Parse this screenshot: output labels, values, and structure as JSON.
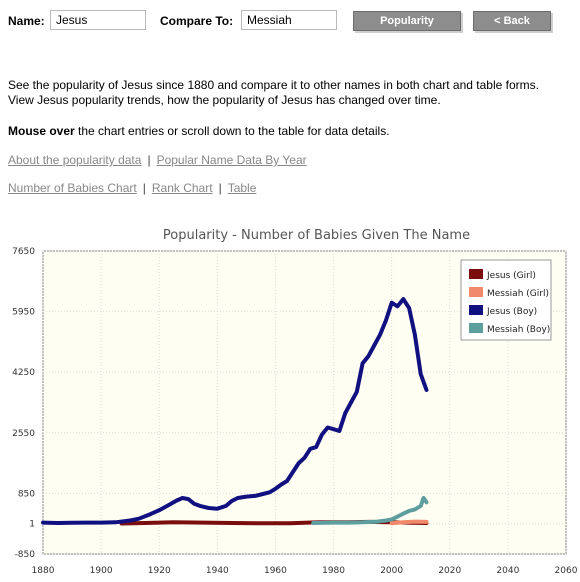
{
  "form": {
    "name_label": "Name:",
    "name_value": "Jesus",
    "compare_label": "Compare To:",
    "compare_value": "Messiah",
    "popularity_button": "Popularity",
    "back_button": "< Back"
  },
  "intro": {
    "line1": "See the popularity of Jesus since 1880 and compare it to other names in both chart and table forms.",
    "line2": "View Jesus popularity trends, how the popularity of Jesus has changed over time.",
    "mouse_bold": "Mouse over",
    "mouse_rest": " the chart entries or scroll down to the table for data details."
  },
  "links": {
    "about": "About the popularity data",
    "popular": "Popular Name Data By Year",
    "number_chart": "Number of Babies Chart",
    "rank_chart": "Rank Chart",
    "table": "Table",
    "separator": "|"
  },
  "colors": {
    "jesus_girl": "#7a0d0d",
    "messiah_girl": "#f08a6a",
    "jesus_boy": "#101080",
    "messiah_boy": "#5f9e9e",
    "plot_bg": "#fffef3"
  },
  "chart_data": {
    "type": "line",
    "title": "Popularity - Number of Babies Given The Name",
    "xlim": [
      1880,
      2060
    ],
    "ylim": [
      -850,
      7650
    ],
    "x_ticks": [
      1880,
      1900,
      1920,
      1940,
      1960,
      1980,
      2000,
      2020,
      2040,
      2060
    ],
    "y_ticks": [
      -850,
      1,
      850,
      2550,
      4250,
      5950,
      7650
    ],
    "grid": true,
    "legend_position": "top-right",
    "series": [
      {
        "name": "Jesus (Girl)",
        "color": "#7a0d0d",
        "points": [
          [
            1907,
            5
          ],
          [
            1915,
            20
          ],
          [
            1925,
            40
          ],
          [
            1935,
            30
          ],
          [
            1945,
            20
          ],
          [
            1955,
            10
          ],
          [
            1965,
            15
          ],
          [
            1975,
            40
          ],
          [
            1985,
            40
          ],
          [
            1992,
            50
          ],
          [
            2000,
            40
          ],
          [
            2005,
            30
          ],
          [
            2012,
            20
          ]
        ]
      },
      {
        "name": "Messiah (Girl)",
        "color": "#f08a6a",
        "points": [
          [
            2000,
            10
          ],
          [
            2004,
            40
          ],
          [
            2008,
            60
          ],
          [
            2012,
            50
          ]
        ]
      },
      {
        "name": "Jesus (Boy)",
        "color": "#101080",
        "points": [
          [
            1880,
            30
          ],
          [
            1885,
            20
          ],
          [
            1890,
            25
          ],
          [
            1895,
            30
          ],
          [
            1900,
            30
          ],
          [
            1905,
            40
          ],
          [
            1910,
            90
          ],
          [
            1913,
            140
          ],
          [
            1917,
            270
          ],
          [
            1920,
            380
          ],
          [
            1923,
            510
          ],
          [
            1926,
            650
          ],
          [
            1928,
            720
          ],
          [
            1930,
            690
          ],
          [
            1932,
            560
          ],
          [
            1934,
            500
          ],
          [
            1937,
            440
          ],
          [
            1940,
            420
          ],
          [
            1943,
            500
          ],
          [
            1945,
            640
          ],
          [
            1947,
            720
          ],
          [
            1950,
            760
          ],
          [
            1953,
            780
          ],
          [
            1955,
            820
          ],
          [
            1958,
            880
          ],
          [
            1960,
            980
          ],
          [
            1962,
            1100
          ],
          [
            1964,
            1200
          ],
          [
            1966,
            1450
          ],
          [
            1968,
            1700
          ],
          [
            1970,
            1850
          ],
          [
            1972,
            2100
          ],
          [
            1974,
            2150
          ],
          [
            1976,
            2500
          ],
          [
            1978,
            2700
          ],
          [
            1980,
            2650
          ],
          [
            1982,
            2600
          ],
          [
            1984,
            3100
          ],
          [
            1986,
            3400
          ],
          [
            1988,
            3700
          ],
          [
            1990,
            4500
          ],
          [
            1992,
            4700
          ],
          [
            1994,
            5000
          ],
          [
            1996,
            5300
          ],
          [
            1998,
            5700
          ],
          [
            2000,
            6200
          ],
          [
            2002,
            6100
          ],
          [
            2004,
            6300
          ],
          [
            2006,
            6050
          ],
          [
            2008,
            5300
          ],
          [
            2010,
            4200
          ],
          [
            2012,
            3750
          ]
        ]
      },
      {
        "name": "Messiah (Boy)",
        "color": "#5f9e9e",
        "points": [
          [
            1973,
            20
          ],
          [
            1980,
            30
          ],
          [
            1985,
            30
          ],
          [
            1990,
            40
          ],
          [
            1995,
            60
          ],
          [
            1998,
            90
          ],
          [
            2000,
            120
          ],
          [
            2002,
            200
          ],
          [
            2004,
            280
          ],
          [
            2006,
            360
          ],
          [
            2008,
            400
          ],
          [
            2010,
            500
          ],
          [
            2011,
            720
          ],
          [
            2012,
            600
          ]
        ]
      }
    ]
  }
}
